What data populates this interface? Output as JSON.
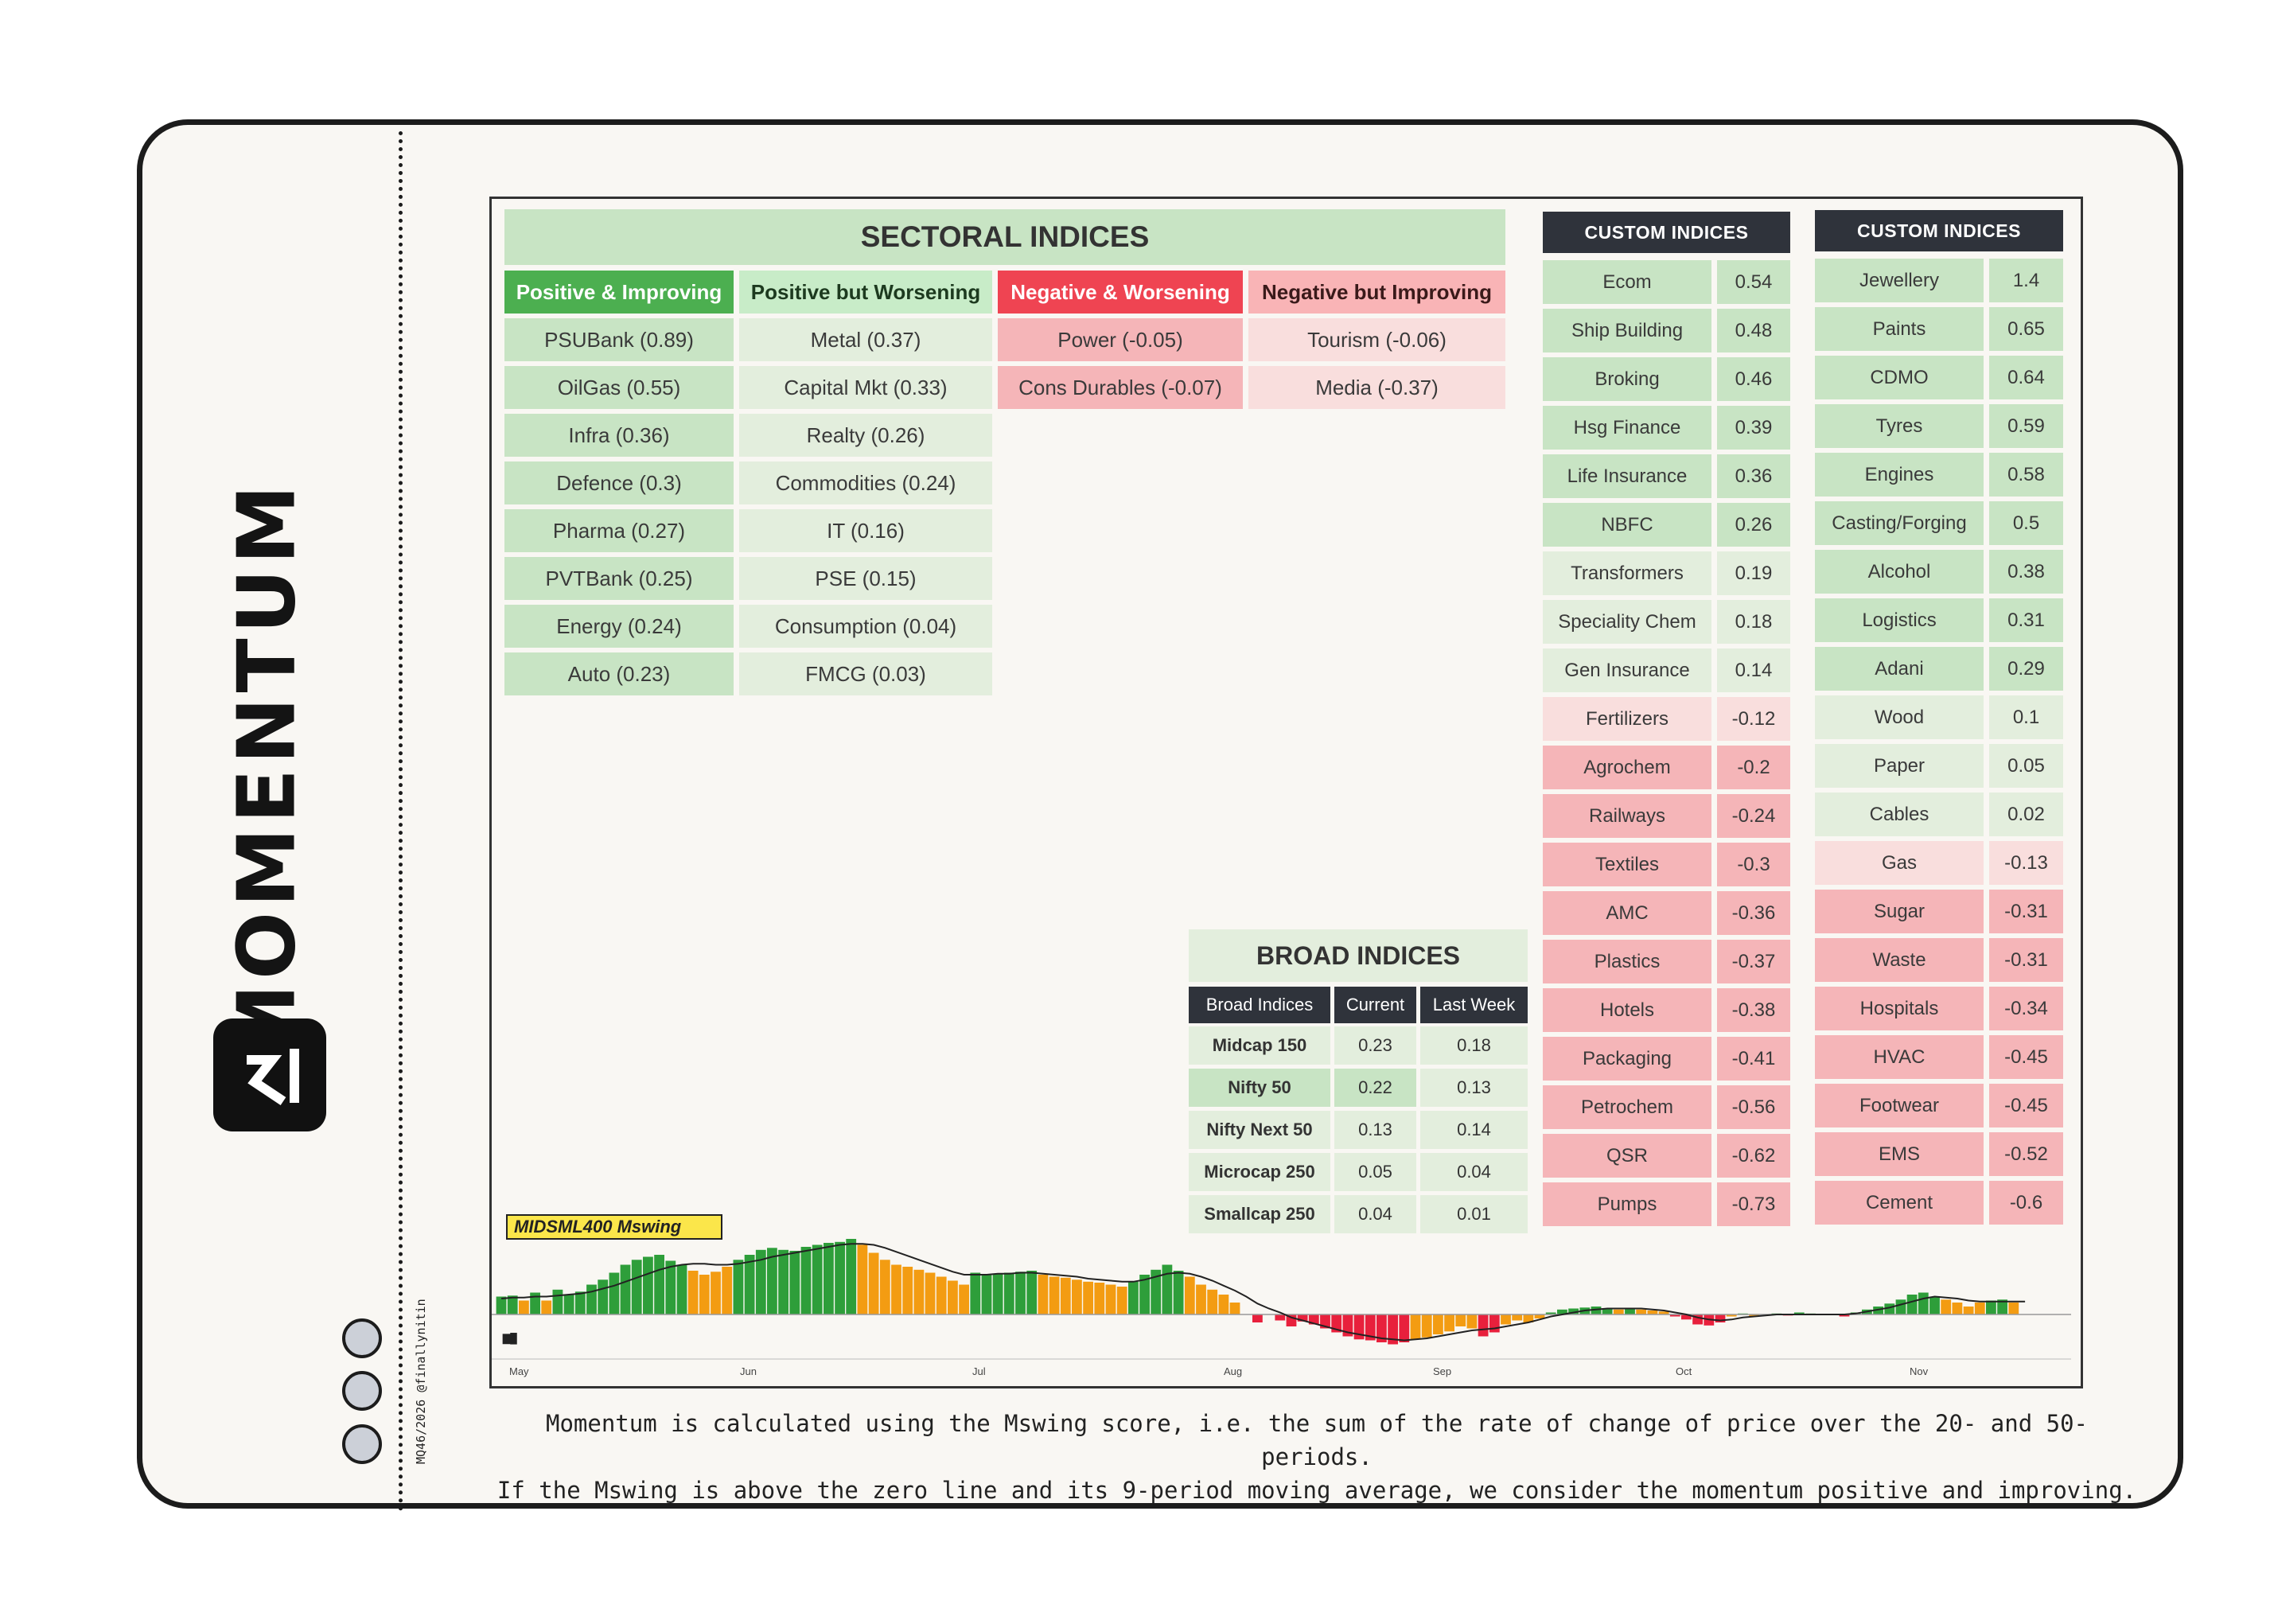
{
  "brand": {
    "title": "MOMENTUM",
    "credit": "MQ46/2026 @finallynitin"
  },
  "sectoral": {
    "title": "SECTORAL INDICES",
    "columns": [
      {
        "header": "Positive & Improving",
        "items": [
          "PSUBank (0.89)",
          "OilGas (0.55)",
          "Infra (0.36)",
          "Defence (0.3)",
          "Pharma (0.27)",
          "PVTBank (0.25)",
          "Energy (0.24)",
          "Auto (0.23)"
        ]
      },
      {
        "header": "Positive but Worsening",
        "items": [
          "Metal (0.37)",
          "Capital Mkt (0.33)",
          "Realty (0.26)",
          "Commodities (0.24)",
          "IT (0.16)",
          "PSE (0.15)",
          "Consumption (0.04)",
          "FMCG (0.03)"
        ]
      },
      {
        "header": "Negative & Worsening",
        "items": [
          "Power (-0.05)",
          "Cons Durables (-0.07)"
        ]
      },
      {
        "header": "Negative but Improving",
        "items": [
          "Tourism (-0.06)",
          "Media (-0.37)"
        ]
      }
    ]
  },
  "custom1": {
    "title": "CUSTOM INDICES",
    "rows": [
      {
        "name": "Ecom",
        "value": "0.54"
      },
      {
        "name": "Ship Building",
        "value": "0.48"
      },
      {
        "name": "Broking",
        "value": "0.46"
      },
      {
        "name": "Hsg Finance",
        "value": "0.39"
      },
      {
        "name": "Life Insurance",
        "value": "0.36"
      },
      {
        "name": "NBFC",
        "value": "0.26"
      },
      {
        "name": "Transformers",
        "value": "0.19"
      },
      {
        "name": "Speciality Chem",
        "value": "0.18"
      },
      {
        "name": "Gen Insurance",
        "value": "0.14"
      },
      {
        "name": "Fertilizers",
        "value": "-0.12"
      },
      {
        "name": "Agrochem",
        "value": "-0.2"
      },
      {
        "name": "Railways",
        "value": "-0.24"
      },
      {
        "name": "Textiles",
        "value": "-0.3"
      },
      {
        "name": "AMC",
        "value": "-0.36"
      },
      {
        "name": "Plastics",
        "value": "-0.37"
      },
      {
        "name": "Hotels",
        "value": "-0.38"
      },
      {
        "name": "Packaging",
        "value": "-0.41"
      },
      {
        "name": "Petrochem",
        "value": "-0.56"
      },
      {
        "name": "QSR",
        "value": "-0.62"
      },
      {
        "name": "Pumps",
        "value": "-0.73"
      }
    ]
  },
  "custom2": {
    "title": "CUSTOM INDICES",
    "rows": [
      {
        "name": "Jewellery",
        "value": "1.4"
      },
      {
        "name": "Paints",
        "value": "0.65"
      },
      {
        "name": "CDMO",
        "value": "0.64"
      },
      {
        "name": "Tyres",
        "value": "0.59"
      },
      {
        "name": "Engines",
        "value": "0.58"
      },
      {
        "name": "Casting/Forging",
        "value": "0.5"
      },
      {
        "name": "Alcohol",
        "value": "0.38"
      },
      {
        "name": "Logistics",
        "value": "0.31"
      },
      {
        "name": "Adani",
        "value": "0.29"
      },
      {
        "name": "Wood",
        "value": "0.1"
      },
      {
        "name": "Paper",
        "value": "0.05"
      },
      {
        "name": "Cables",
        "value": "0.02"
      },
      {
        "name": "Gas",
        "value": "-0.13"
      },
      {
        "name": "Sugar",
        "value": "-0.31"
      },
      {
        "name": "Waste",
        "value": "-0.31"
      },
      {
        "name": "Hospitals",
        "value": "-0.34"
      },
      {
        "name": "HVAC",
        "value": "-0.45"
      },
      {
        "name": "Footwear",
        "value": "-0.45"
      },
      {
        "name": "EMS",
        "value": "-0.52"
      },
      {
        "name": "Cement",
        "value": "-0.6"
      }
    ]
  },
  "broad": {
    "title": "BROAD INDICES",
    "headers": [
      "Broad Indices",
      "Current",
      "Last Week"
    ],
    "rows": [
      {
        "name": "Midcap 150",
        "current": "0.23",
        "last": "0.18"
      },
      {
        "name": "Nifty 50",
        "current": "0.22",
        "last": "0.13"
      },
      {
        "name": "Nifty Next 50",
        "current": "0.13",
        "last": "0.14"
      },
      {
        "name": "Microcap 250",
        "current": "0.05",
        "last": "0.04"
      },
      {
        "name": "Smallcap 250",
        "current": "0.04",
        "last": "0.01"
      }
    ]
  },
  "colors": {
    "strong_green": "#c8e4c4",
    "light_green": "#e3eedd",
    "strong_red": "#f5b5b8",
    "light_red": "#f9dedd",
    "hdr_pos_imp": "#4caf50",
    "hdr_pos_wor": "#c8ecc8",
    "hdr_neg_wor": "#ef4452",
    "hdr_neg_imp": "#f9b4b6",
    "bar_green": "#2e9e3a",
    "bar_orange": "#f39c12",
    "bar_red": "#e8203c"
  },
  "chart_data": {
    "type": "bar",
    "title": "MIDSML400 Mswing",
    "x_labels": [
      "May",
      "Jun",
      "Jul",
      "Aug",
      "Sep",
      "Oct",
      "Nov"
    ],
    "values": [
      0.18,
      0.19,
      0.14,
      0.22,
      0.14,
      0.25,
      0.2,
      0.23,
      0.3,
      0.35,
      0.42,
      0.5,
      0.55,
      0.58,
      0.6,
      0.54,
      0.5,
      0.44,
      0.4,
      0.43,
      0.48,
      0.55,
      0.6,
      0.65,
      0.67,
      0.65,
      0.64,
      0.68,
      0.7,
      0.72,
      0.73,
      0.76,
      0.7,
      0.62,
      0.55,
      0.5,
      0.48,
      0.45,
      0.42,
      0.38,
      0.34,
      0.3,
      0.42,
      0.4,
      0.41,
      0.42,
      0.43,
      0.44,
      0.4,
      0.38,
      0.37,
      0.35,
      0.33,
      0.32,
      0.3,
      0.28,
      0.33,
      0.4,
      0.45,
      0.5,
      0.44,
      0.38,
      0.3,
      0.25,
      0.2,
      0.12,
      0,
      -0.08,
      0,
      -0.06,
      -0.12,
      -0.07,
      -0.1,
      -0.14,
      -0.18,
      -0.22,
      -0.25,
      -0.26,
      -0.28,
      -0.3,
      -0.28,
      -0.25,
      -0.23,
      -0.2,
      -0.17,
      -0.12,
      -0.14,
      -0.22,
      -0.18,
      -0.1,
      -0.06,
      -0.08,
      -0.04,
      0.02,
      0.05,
      0.06,
      0.07,
      0.08,
      0.06,
      0.05,
      0.06,
      0.05,
      0.04,
      0.03,
      -0.02,
      -0.05,
      -0.1,
      -0.11,
      -0.08,
      -0.02,
      0.01,
      -0.02,
      0,
      0.01,
      -0.01,
      0.02,
      0.01,
      0,
      0,
      -0.02,
      0.02,
      0.05,
      0.08,
      0.11,
      0.15,
      0.2,
      0.22,
      0.18,
      0.15,
      0.12,
      0.08,
      0.12,
      0.14,
      0.15,
      0.12
    ],
    "signal": [
      0.16,
      0.17,
      0.17,
      0.18,
      0.18,
      0.19,
      0.2,
      0.21,
      0.23,
      0.26,
      0.29,
      0.33,
      0.37,
      0.41,
      0.45,
      0.48,
      0.5,
      0.51,
      0.51,
      0.5,
      0.5,
      0.51,
      0.53,
      0.55,
      0.58,
      0.6,
      0.62,
      0.64,
      0.66,
      0.68,
      0.7,
      0.71,
      0.71,
      0.7,
      0.67,
      0.63,
      0.59,
      0.55,
      0.51,
      0.47,
      0.43,
      0.4,
      0.4,
      0.4,
      0.41,
      0.41,
      0.42,
      0.42,
      0.41,
      0.4,
      0.39,
      0.38,
      0.36,
      0.35,
      0.34,
      0.33,
      0.33,
      0.35,
      0.38,
      0.41,
      0.42,
      0.41,
      0.38,
      0.34,
      0.29,
      0.24,
      0.18,
      0.11,
      0.06,
      0.02,
      -0.03,
      -0.06,
      -0.09,
      -0.12,
      -0.15,
      -0.18,
      -0.2,
      -0.22,
      -0.24,
      -0.25,
      -0.26,
      -0.25,
      -0.24,
      -0.22,
      -0.2,
      -0.18,
      -0.16,
      -0.15,
      -0.14,
      -0.12,
      -0.1,
      -0.08,
      -0.05,
      -0.02,
      0,
      0.02,
      0.04,
      0.05,
      0.06,
      0.06,
      0.06,
      0.06,
      0.05,
      0.04,
      0.02,
      0,
      -0.03,
      -0.05,
      -0.06,
      -0.05,
      -0.03,
      -0.02,
      -0.01,
      0,
      0,
      0,
      0,
      0,
      0,
      0,
      0.01,
      0.03,
      0.05,
      0.07,
      0.1,
      0.13,
      0.16,
      0.18,
      0.17,
      0.16,
      0.14,
      0.13,
      0.13,
      0.13,
      0.13,
      0.13
    ],
    "ylim": [
      -0.5,
      0.9
    ]
  },
  "footer": {
    "line1": "Momentum is calculated using the Mswing score, i.e. the sum of the rate of change of price over the 20- and 50-periods.",
    "line2": "If the Mswing is above the zero line and its 9-period moving average, we consider the momentum positive and improving."
  }
}
